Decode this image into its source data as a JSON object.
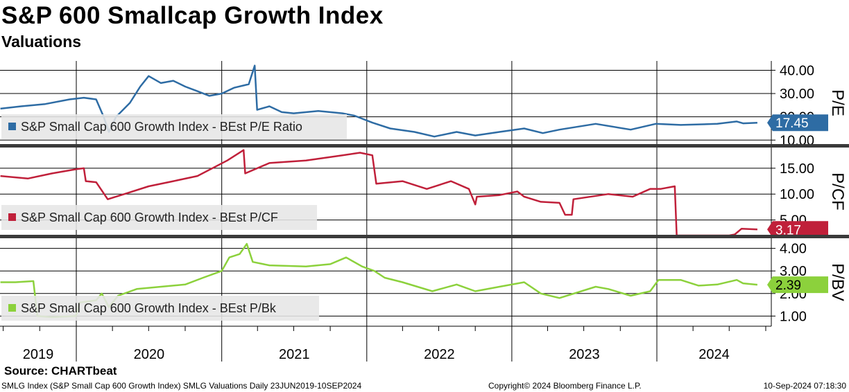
{
  "header": {
    "title": "S&P 600 Smallcap Growth Index",
    "subtitle": "Valuations"
  },
  "source": "Source: CHARTbeat",
  "footer": {
    "left": "SMLG Index (S&P Small Cap 600 Growth Index) SMLG Valuations  Daily 23JUN2019-10SEP2024",
    "center": "Copyright© 2024 Bloomberg Finance L.P.",
    "right": "10-Sep-2024 07:18:30"
  },
  "chart_data": [
    {
      "type": "line",
      "panel_label": "P/E",
      "ylim": [
        8,
        44
      ],
      "y_ticks": [
        10,
        20,
        30,
        40
      ],
      "y_tick_labels": [
        "10.00",
        "20.00",
        "30.00",
        "40.00"
      ],
      "color": "#2e6ca4",
      "series": [
        {
          "name": "S&P Small Cap 600 Growth Index - BEst P/E Ratio",
          "last_value_label": "17.45",
          "points": [
            [
              "2019-06-24",
              23.5
            ],
            [
              "2019-08-15",
              24.5
            ],
            [
              "2019-10-15",
              25.5
            ],
            [
              "2019-12-15",
              27.5
            ],
            [
              "2020-01-20",
              28.2
            ],
            [
              "2020-02-20",
              27.5
            ],
            [
              "2020-03-10",
              20.0
            ],
            [
              "2020-03-23",
              13.5
            ],
            [
              "2020-04-10",
              20.0
            ],
            [
              "2020-05-15",
              26.0
            ],
            [
              "2020-06-10",
              33.0
            ],
            [
              "2020-07-01",
              37.5
            ],
            [
              "2020-08-01",
              34.5
            ],
            [
              "2020-09-01",
              35.5
            ],
            [
              "2020-10-01",
              33.0
            ],
            [
              "2020-11-01",
              31.0
            ],
            [
              "2020-12-01",
              29.0
            ],
            [
              "2021-01-01",
              30.0
            ],
            [
              "2021-02-01",
              32.5
            ],
            [
              "2021-03-10",
              34.0
            ],
            [
              "2021-03-25",
              42.0
            ],
            [
              "2021-03-31",
              23.0
            ],
            [
              "2021-05-01",
              24.5
            ],
            [
              "2021-06-01",
              22.0
            ],
            [
              "2021-07-01",
              21.5
            ],
            [
              "2021-09-01",
              22.5
            ],
            [
              "2021-11-01",
              21.5
            ],
            [
              "2021-12-01",
              20.5
            ],
            [
              "2022-01-15",
              17.5
            ],
            [
              "2022-03-01",
              15.0
            ],
            [
              "2022-05-01",
              13.5
            ],
            [
              "2022-06-20",
              11.5
            ],
            [
              "2022-08-15",
              13.5
            ],
            [
              "2022-10-01",
              12.0
            ],
            [
              "2022-12-01",
              13.5
            ],
            [
              "2023-02-01",
              15.0
            ],
            [
              "2023-03-20",
              13.0
            ],
            [
              "2023-05-01",
              14.5
            ],
            [
              "2023-07-31",
              17.0
            ],
            [
              "2023-10-27",
              14.5
            ],
            [
              "2023-12-29",
              17.0
            ],
            [
              "2024-03-01",
              16.5
            ],
            [
              "2024-06-01",
              17.0
            ],
            [
              "2024-07-20",
              18.0
            ],
            [
              "2024-08-05",
              17.2
            ],
            [
              "2024-09-10",
              17.45
            ]
          ]
        }
      ]
    },
    {
      "type": "line",
      "panel_label": "P/CF",
      "ylim": [
        2,
        19
      ],
      "y_ticks": [
        5,
        10,
        15
      ],
      "y_tick_labels": [
        "5.00",
        "10.00",
        "15.00"
      ],
      "color": "#c0203a",
      "series": [
        {
          "name": "S&P Small Cap 600 Growth Index - BEst P/CF",
          "last_value_label": "3.17",
          "points": [
            [
              "2019-06-24",
              13.5
            ],
            [
              "2019-09-01",
              13.0
            ],
            [
              "2019-11-01",
              14.0
            ],
            [
              "2019-12-31",
              14.8
            ],
            [
              "2020-01-20",
              15.0
            ],
            [
              "2020-01-25",
              12.5
            ],
            [
              "2020-02-20",
              12.3
            ],
            [
              "2020-03-20",
              9.0
            ],
            [
              "2020-05-01",
              10.0
            ],
            [
              "2020-07-01",
              11.5
            ],
            [
              "2020-09-01",
              12.5
            ],
            [
              "2020-11-01",
              13.5
            ],
            [
              "2021-01-15",
              16.5
            ],
            [
              "2021-02-25",
              18.5
            ],
            [
              "2021-03-01",
              14.0
            ],
            [
              "2021-05-01",
              16.0
            ],
            [
              "2021-08-01",
              16.5
            ],
            [
              "2021-11-01",
              17.5
            ],
            [
              "2021-12-15",
              18.0
            ],
            [
              "2022-01-15",
              17.5
            ],
            [
              "2022-01-25",
              12.0
            ],
            [
              "2022-04-01",
              12.5
            ],
            [
              "2022-06-01",
              11.0
            ],
            [
              "2022-08-01",
              12.5
            ],
            [
              "2022-09-15",
              11.0
            ],
            [
              "2022-10-01",
              8.0
            ],
            [
              "2022-10-05",
              9.5
            ],
            [
              "2022-12-01",
              9.8
            ],
            [
              "2023-01-15",
              10.5
            ],
            [
              "2023-02-01",
              9.5
            ],
            [
              "2023-03-15",
              8.5
            ],
            [
              "2023-05-01",
              8.3
            ],
            [
              "2023-05-15",
              6.0
            ],
            [
              "2023-06-01",
              6.0
            ],
            [
              "2023-06-05",
              9.0
            ],
            [
              "2023-09-01",
              10.0
            ],
            [
              "2023-11-01",
              9.5
            ],
            [
              "2023-12-15",
              11.0
            ],
            [
              "2024-01-10",
              11.0
            ],
            [
              "2024-02-15",
              11.5
            ],
            [
              "2024-02-20",
              2.0
            ],
            [
              "2024-07-01",
              2.0
            ],
            [
              "2024-07-15",
              2.2
            ],
            [
              "2024-08-01",
              3.3
            ],
            [
              "2024-09-10",
              3.17
            ]
          ]
        }
      ]
    },
    {
      "type": "line",
      "panel_label": "P/BV",
      "ylim": [
        0.55,
        4.45
      ],
      "y_ticks": [
        1,
        2,
        3,
        4
      ],
      "y_tick_labels": [
        "1.00",
        "2.00",
        "3.00",
        "4.00"
      ],
      "color": "#8cd13c",
      "series": [
        {
          "name": "S&P Small Cap 600 Growth Index - BEst P/Bk",
          "last_value_label": "2.39",
          "points": [
            [
              "2019-06-24",
              2.5
            ],
            [
              "2019-08-01",
              2.5
            ],
            [
              "2019-09-15",
              2.55
            ],
            [
              "2019-09-25",
              1.0
            ],
            [
              "2019-11-01",
              0.95
            ],
            [
              "2019-12-31",
              1.0
            ],
            [
              "2020-01-10",
              1.6
            ],
            [
              "2020-02-20",
              1.7
            ],
            [
              "2020-03-05",
              2.0
            ],
            [
              "2020-03-23",
              1.4
            ],
            [
              "2020-04-15",
              1.9
            ],
            [
              "2020-06-01",
              2.2
            ],
            [
              "2020-08-01",
              2.3
            ],
            [
              "2020-10-01",
              2.4
            ],
            [
              "2020-11-15",
              2.7
            ],
            [
              "2021-01-01",
              3.0
            ],
            [
              "2021-01-20",
              3.6
            ],
            [
              "2021-02-15",
              3.75
            ],
            [
              "2021-03-05",
              4.2
            ],
            [
              "2021-03-20",
              3.4
            ],
            [
              "2021-05-01",
              3.25
            ],
            [
              "2021-08-01",
              3.2
            ],
            [
              "2021-10-01",
              3.3
            ],
            [
              "2021-11-10",
              3.6
            ],
            [
              "2021-12-20",
              3.2
            ],
            [
              "2022-01-20",
              3.0
            ],
            [
              "2022-02-15",
              2.7
            ],
            [
              "2022-04-01",
              2.5
            ],
            [
              "2022-06-15",
              2.1
            ],
            [
              "2022-08-15",
              2.4
            ],
            [
              "2022-10-01",
              2.1
            ],
            [
              "2022-12-01",
              2.3
            ],
            [
              "2023-02-01",
              2.5
            ],
            [
              "2023-03-15",
              2.0
            ],
            [
              "2023-05-01",
              1.8
            ],
            [
              "2023-07-31",
              2.3
            ],
            [
              "2023-09-01",
              2.2
            ],
            [
              "2023-10-27",
              1.9
            ],
            [
              "2023-12-15",
              2.1
            ],
            [
              "2024-01-05",
              2.6
            ],
            [
              "2024-03-01",
              2.6
            ],
            [
              "2024-04-15",
              2.35
            ],
            [
              "2024-06-01",
              2.4
            ],
            [
              "2024-07-20",
              2.6
            ],
            [
              "2024-08-05",
              2.45
            ],
            [
              "2024-09-10",
              2.39
            ]
          ]
        }
      ]
    }
  ],
  "x_axis": {
    "type": "time",
    "xlim": [
      "2019-06-23",
      "2024-10-15"
    ],
    "year_labels": [
      "2019",
      "2020",
      "2021",
      "2022",
      "2023",
      "2024"
    ]
  }
}
